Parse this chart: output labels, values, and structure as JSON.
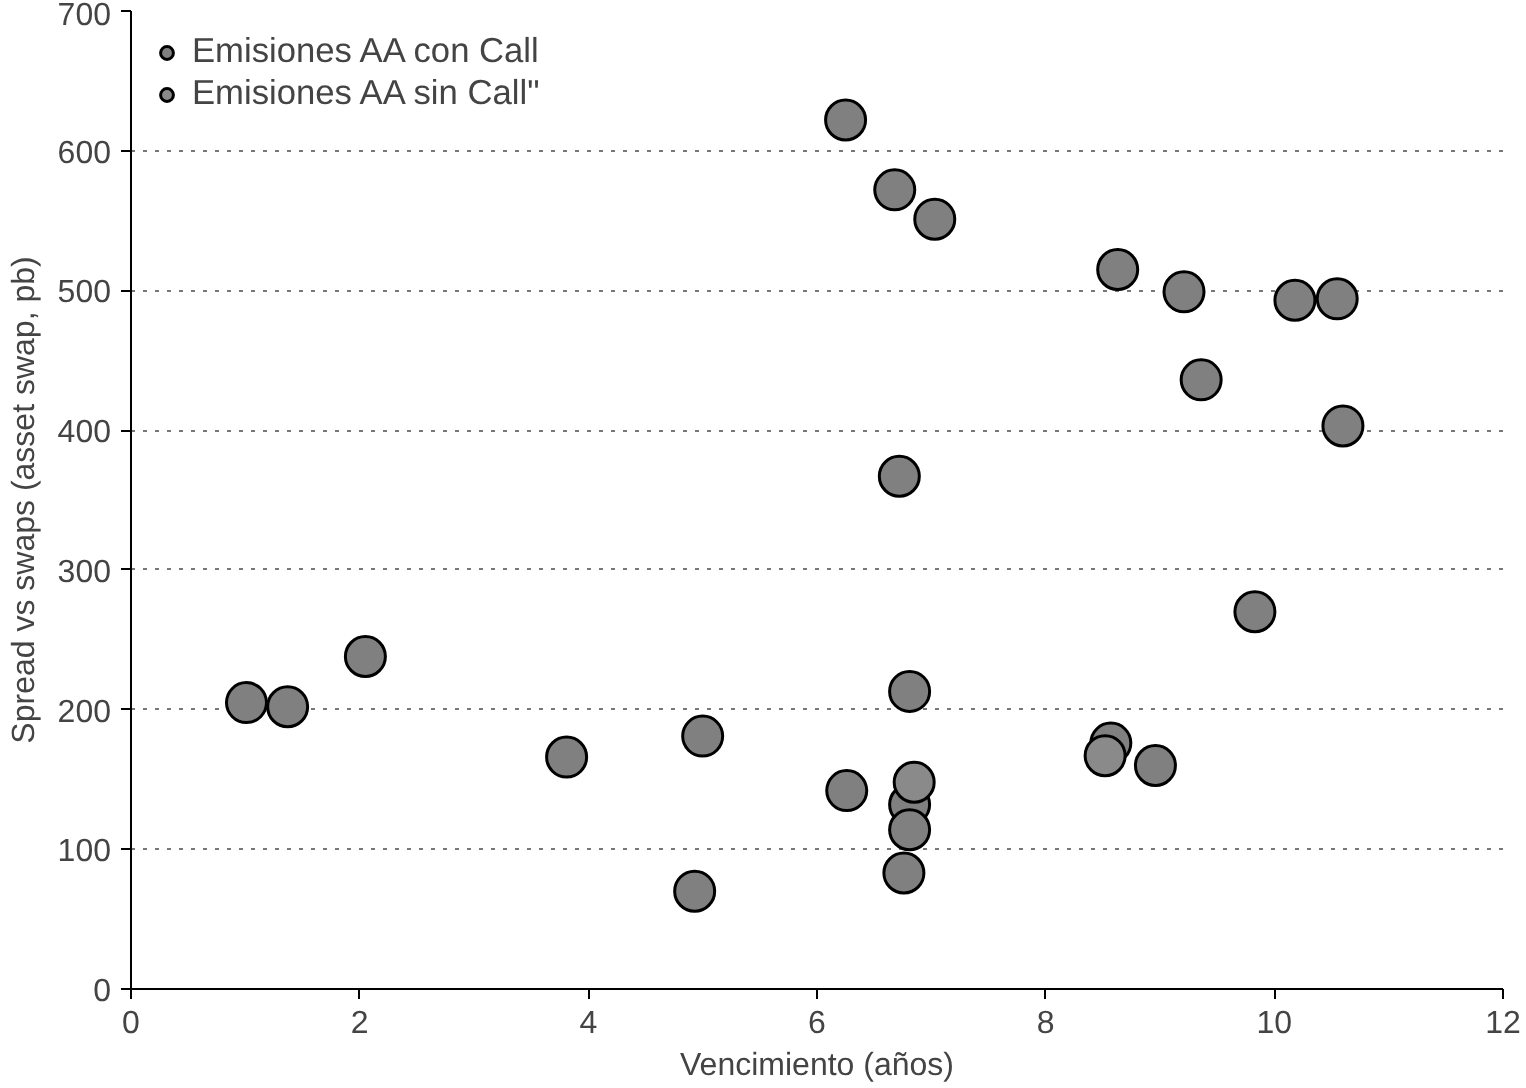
{
  "chart_data": {
    "type": "scatter",
    "xlabel": "Vencimiento (años)",
    "ylabel": "Spread vs swaps (asset swap, pb)",
    "xlim": [
      0,
      12
    ],
    "ylim": [
      0,
      700
    ],
    "xticks": [
      0,
      2,
      4,
      6,
      8,
      10,
      12
    ],
    "yticks": [
      0,
      100,
      200,
      300,
      400,
      500,
      600,
      700
    ],
    "grid": "y",
    "legend": "top left",
    "marker": "circle",
    "series": [
      {
        "name": "Emisiones AA con Call",
        "color": "#808080",
        "x": [
          6.25,
          6.68,
          7.03,
          8.63,
          9.21,
          10.18,
          10.55,
          9.36,
          10.6,
          6.72,
          1.01,
          1.37,
          2.05,
          3.81,
          5.0,
          4.93,
          9.83,
          6.81,
          6.26,
          6.81,
          6.81,
          6.76,
          8.57,
          8.96
        ],
        "values": [
          622,
          572,
          551,
          515,
          499,
          493,
          494,
          436,
          403,
          367,
          205,
          202,
          238,
          166,
          181,
          70,
          270,
          213,
          142,
          132,
          114,
          83,
          176,
          160
        ]
      },
      {
        "name": "Emisiones AA sin Call\"",
        "color": "#8a8a8a",
        "x": [
          6.85,
          8.52
        ],
        "values": [
          148,
          167
        ]
      }
    ]
  }
}
